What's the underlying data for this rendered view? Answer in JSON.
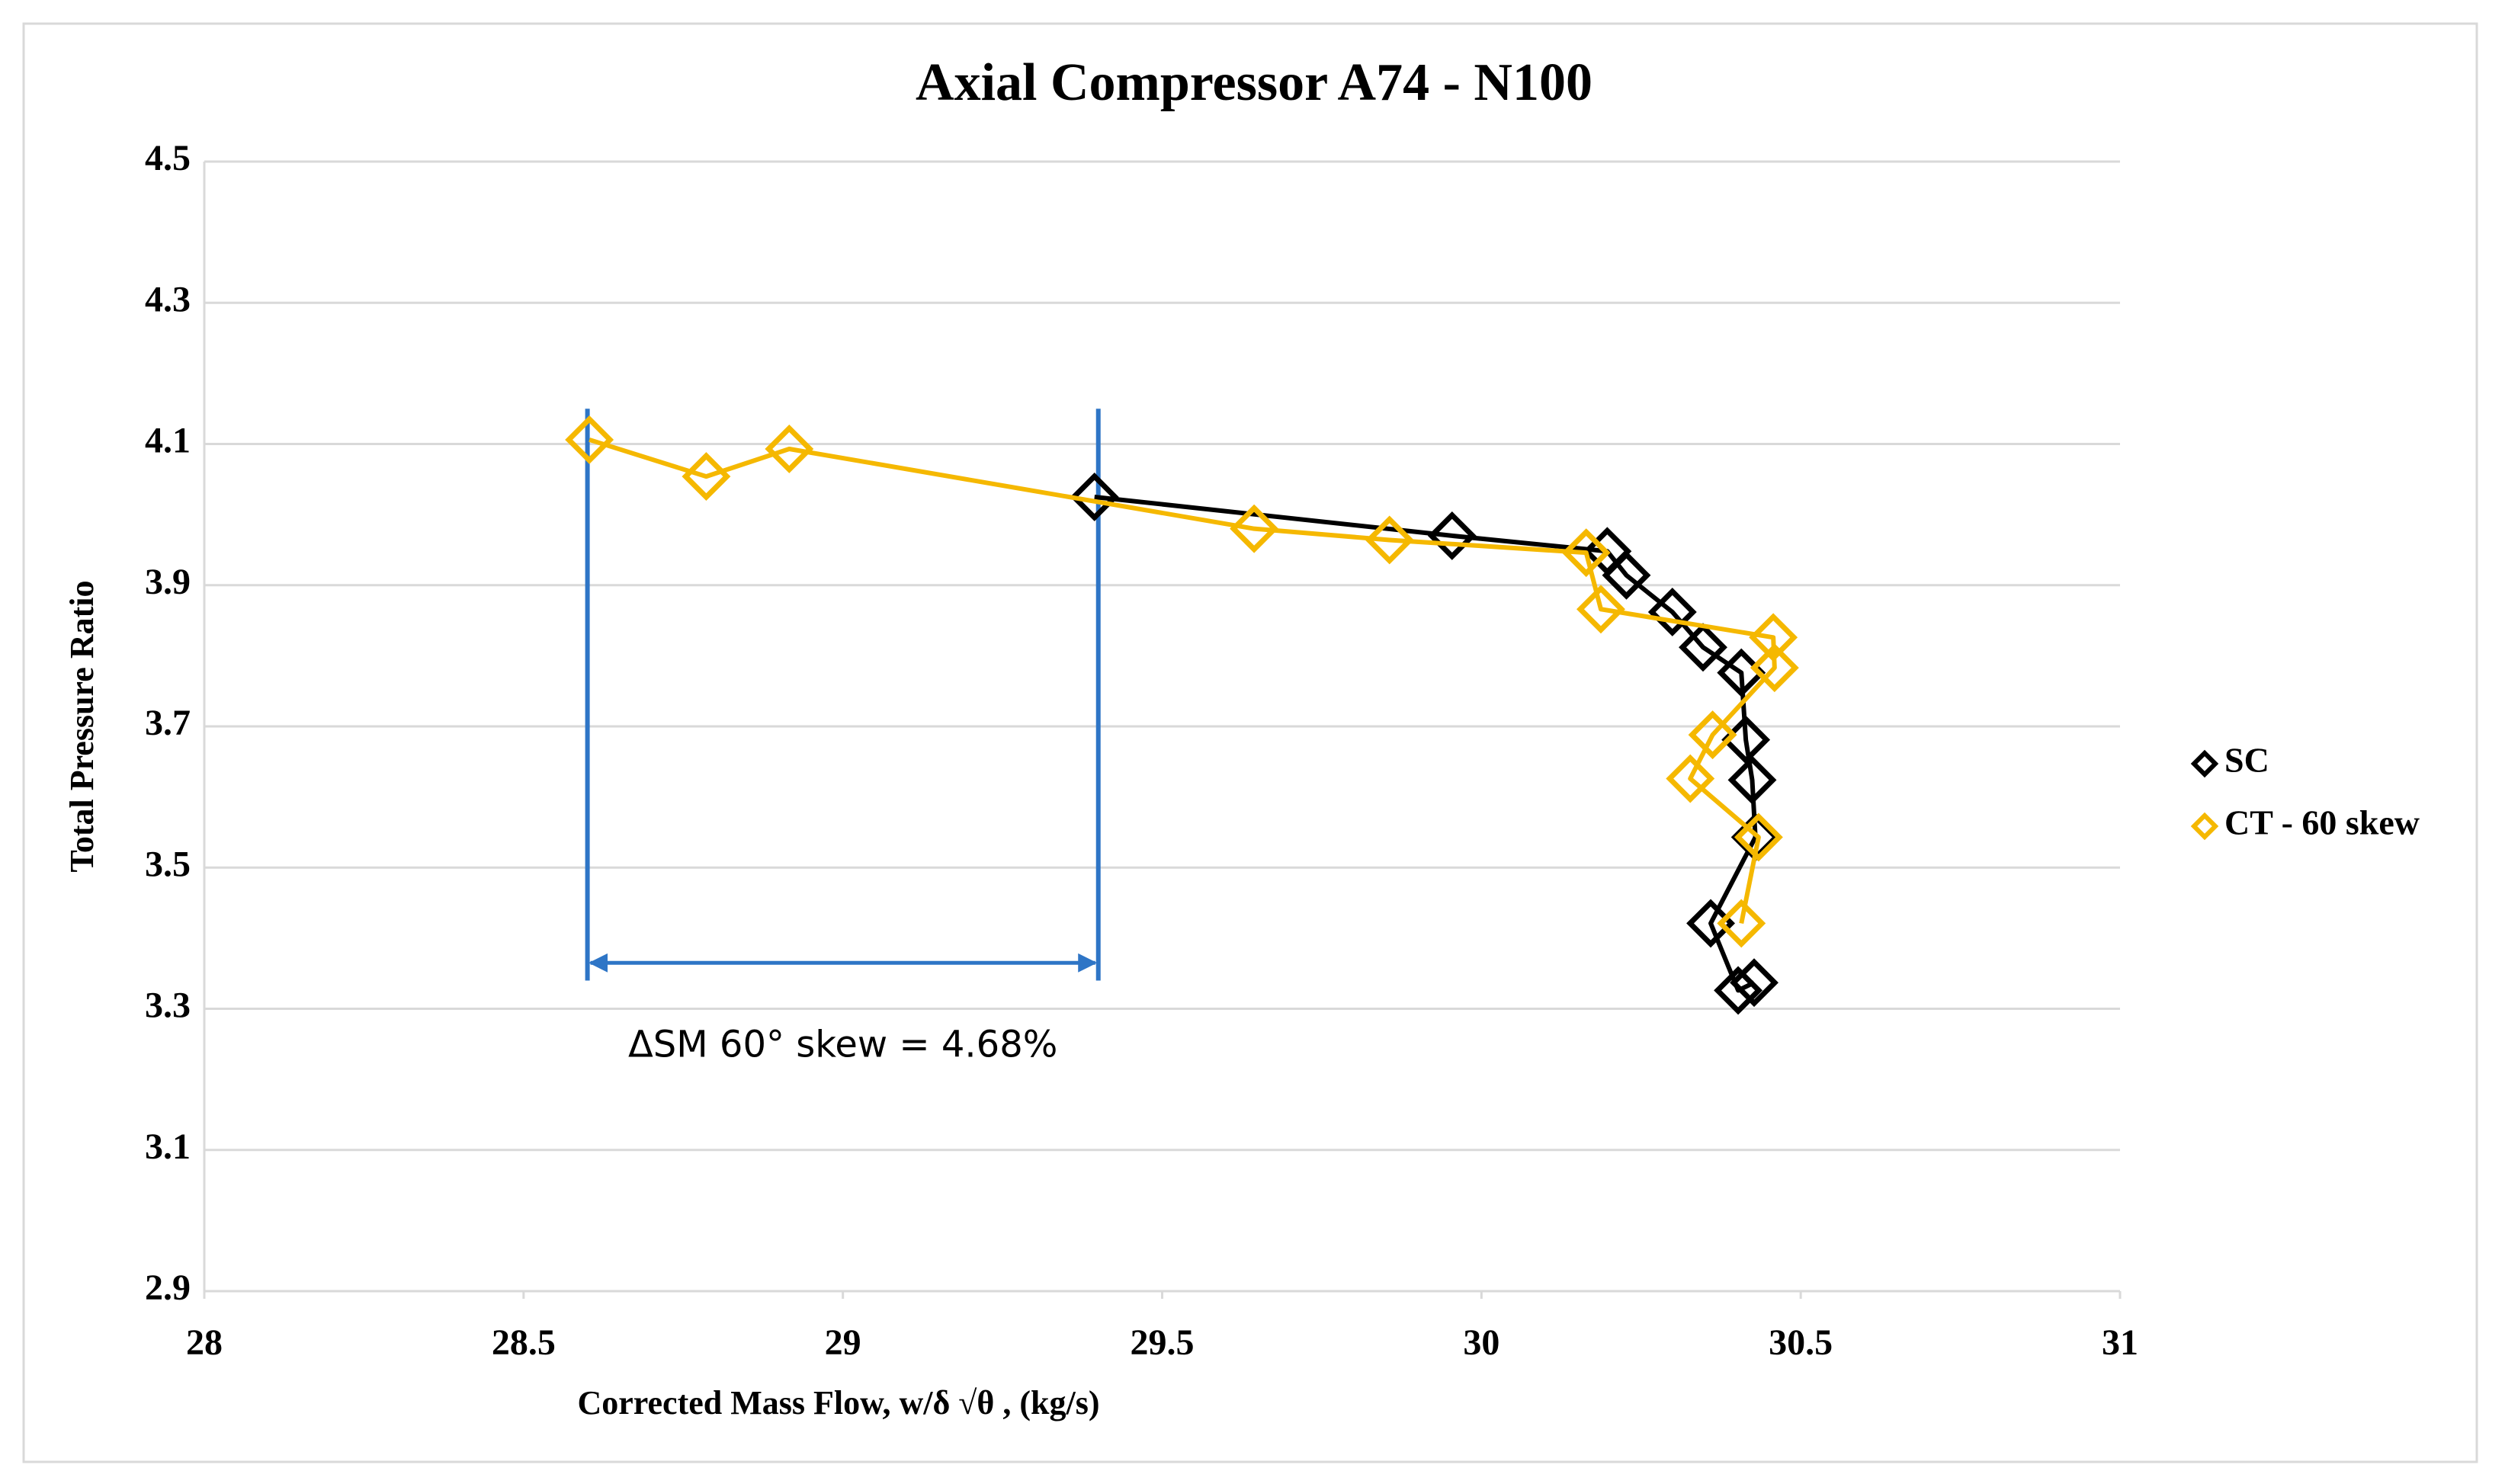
{
  "chart_data": {
    "type": "line",
    "title": "Axial Compressor A74 - N100",
    "xlabel": "Corrected Mass Flow, w/δ √θ , (kg/s)",
    "ylabel": "Total Pressure Ratio",
    "xlim": [
      28,
      31
    ],
    "xticks": [
      28,
      28.5,
      29,
      29.5,
      30,
      30.5,
      31
    ],
    "ylim": [
      2.9,
      4.5
    ],
    "yticks": [
      2.9,
      3.1,
      3.3,
      3.5,
      3.7,
      3.9,
      4.1,
      4.3,
      4.5
    ],
    "grid": true,
    "legend": "right",
    "series": [
      {
        "name": "SC",
        "color": "#000000",
        "x": [
          29.394,
          29.954,
          30.197,
          30.227,
          30.299,
          30.347,
          30.407,
          30.414,
          30.424,
          30.429,
          30.359,
          30.402,
          30.427
        ],
        "values": [
          4.025,
          3.97,
          3.948,
          3.914,
          3.862,
          3.812,
          3.776,
          3.681,
          3.624,
          3.543,
          3.421,
          3.326,
          3.337
        ]
      },
      {
        "name": "CT - 60 skew",
        "color": "#f5b800",
        "x": [
          28.603,
          28.786,
          28.916,
          29.644,
          29.856,
          30.164,
          30.187,
          30.457,
          30.459,
          30.362,
          30.327,
          30.434,
          30.407
        ],
        "values": [
          4.106,
          4.054,
          4.093,
          3.98,
          3.964,
          3.946,
          3.866,
          3.826,
          3.783,
          3.688,
          3.626,
          3.543,
          3.421
        ]
      }
    ],
    "annotation": {
      "text": "ΔSM 60° skew = 4.68%",
      "color": "#2e75c6",
      "x": [
        28.6,
        29.4
      ],
      "y": [
        3.34,
        4.15
      ],
      "arrow_y": 3.365
    }
  }
}
